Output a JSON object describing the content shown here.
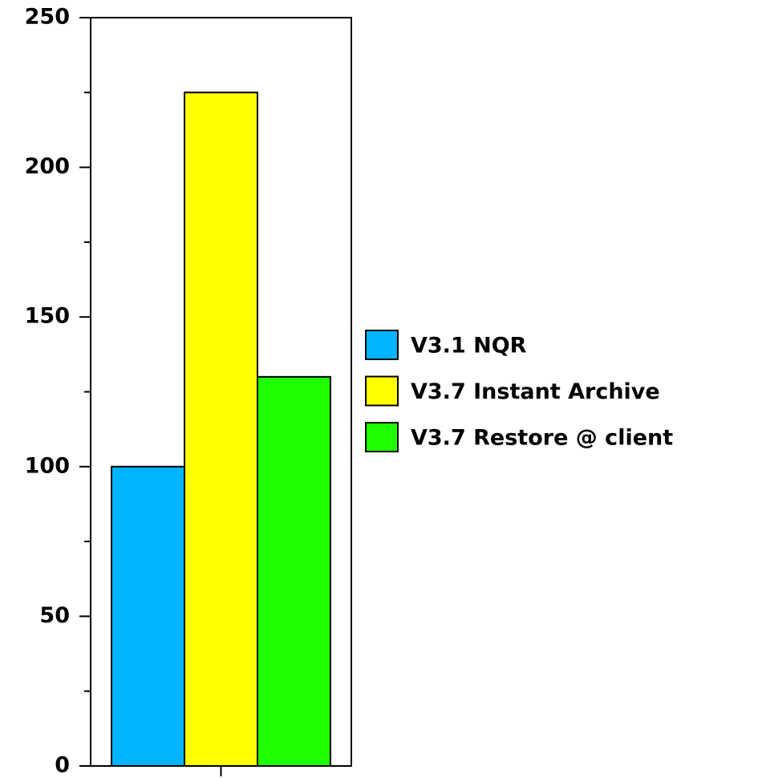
{
  "chart_data": {
    "type": "bar",
    "categories": [
      null
    ],
    "series": [
      {
        "name": "V3.1 NQR",
        "color": "#00b4ff",
        "values": [
          100
        ]
      },
      {
        "name": "V3.7 Instant Archive",
        "color": "#ffff00",
        "values": [
          225
        ]
      },
      {
        "name": "V3.7 Restore @ client",
        "color": "#1eff00",
        "values": [
          130
        ]
      }
    ],
    "ylim": [
      0,
      250
    ],
    "yticks": [
      0,
      50,
      100,
      150,
      200,
      250
    ],
    "yminorticks": [
      25,
      75,
      125,
      175,
      225
    ],
    "grid": false,
    "legend": "right"
  }
}
